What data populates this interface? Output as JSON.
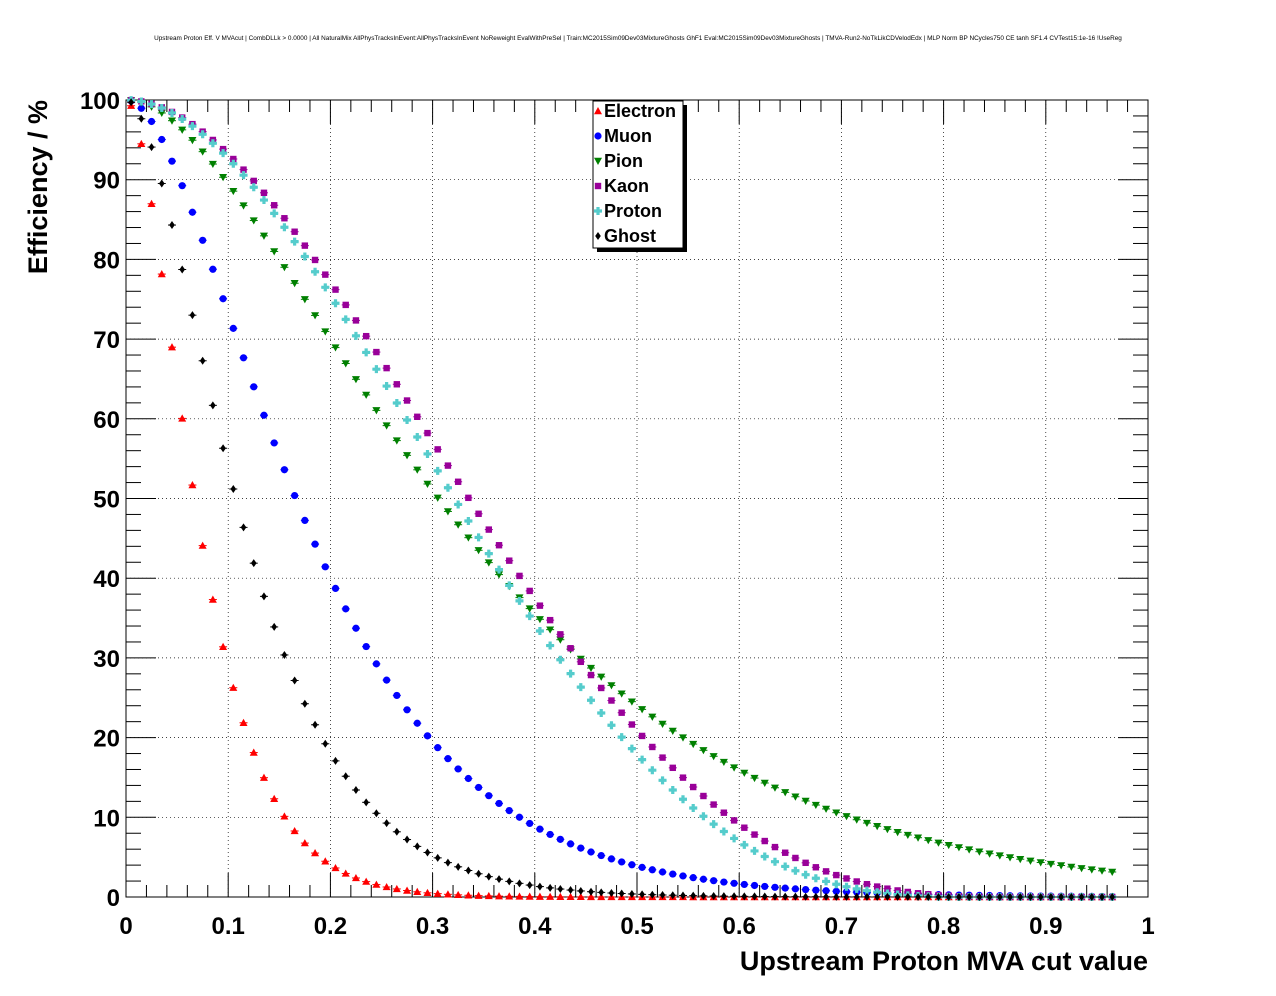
{
  "chart_data": {
    "type": "scatter",
    "title": "Upstream Proton Eff. V MVAcut | CombDLLk > 0.0000 | All NaturalMix AllPhysTracksInEvent:AllPhysTracksInEvent NoReweight EvalWithPreSel | Train:MC2015Sim09Dev03MixtureGhosts GhF1 Eval:MC2015Sim09Dev03MixtureGhosts | TMVA-Run2-NoTkLikCDVelodEdx | MLP Norm BP NCycles750 CE tanh SF1.4 CVTest15:1e-16 !UseReg",
    "xlabel": "Upstream Proton MVA cut value",
    "ylabel": "Efficiency / %",
    "xlim": [
      0,
      1
    ],
    "ylim": [
      0,
      100
    ],
    "xticks": [
      "0",
      "0.1",
      "0.2",
      "0.3",
      "0.4",
      "0.5",
      "0.6",
      "0.7",
      "0.8",
      "0.9",
      "1"
    ],
    "yticks": [
      "0",
      "10",
      "20",
      "30",
      "40",
      "50",
      "60",
      "70",
      "80",
      "90",
      "100"
    ],
    "grid": true,
    "legend_position": "top-center",
    "series": [
      {
        "name": "Electron",
        "color": "#ff0000",
        "marker": "triangle-up",
        "curve": "sigmoid",
        "params": {
          "x0": 0.04,
          "k": 0.68
        }
      },
      {
        "name": "Muon",
        "color": "#0000ff",
        "marker": "circle",
        "curve": "sigmoid",
        "params": {
          "x0": 0.099,
          "k": 1.0
        }
      },
      {
        "name": "Pion",
        "color": "#008000",
        "marker": "triangle-down",
        "curve": "sigmoid",
        "params": {
          "x0": 0.182,
          "k": 1.12
        }
      },
      {
        "name": "Kaon",
        "color": "#990099",
        "marker": "square",
        "curve": "poly",
        "params": {
          "a": 1.15,
          "b": 3.0,
          "c": 0.0
        }
      },
      {
        "name": "Proton",
        "color": "#55cccc",
        "marker": "cross",
        "curve": "poly",
        "params": {
          "a": 1.2,
          "b": 3.0,
          "c": 0.0
        }
      },
      {
        "name": "Ghost",
        "color": "#000000",
        "marker": "diamond",
        "curve": "sigmoid",
        "params": {
          "x0": 0.064,
          "k": 0.72
        }
      }
    ],
    "x_start": 0.005,
    "x_step": 0.01,
    "x_count": 97
  }
}
